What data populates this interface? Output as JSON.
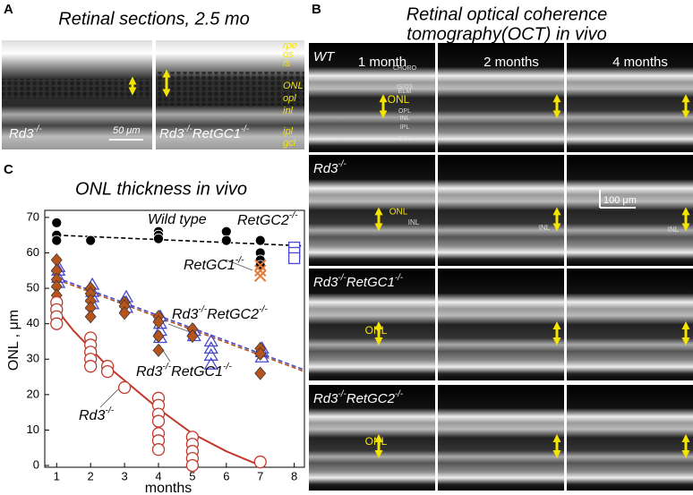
{
  "panels": {
    "A": {
      "letter": "A",
      "title": "Retinal sections, 2.5 mo",
      "left_label": [
        "Rd3",
        "-/-"
      ],
      "right_label": [
        "Rd3",
        "-/-",
        "RetGC1",
        "-/-"
      ],
      "scale": "50 μm",
      "layers": [
        "rpe",
        "os",
        "is",
        "ONL",
        "opl",
        "inl",
        "ipl",
        "gcl"
      ]
    },
    "B": {
      "letter": "B",
      "title": [
        "Retinal optical coherence",
        "tomography(OCT) in vivo"
      ],
      "columns": [
        "1 month",
        "2 months",
        "4 months"
      ],
      "rows": [
        [
          "WT"
        ],
        [
          "Rd3",
          "-/-"
        ],
        [
          "Rd3",
          "-/-",
          "RetGC1",
          "-/-"
        ],
        [
          "Rd3",
          "-/-",
          "RetGC2",
          "-/-"
        ]
      ],
      "scale": "100 μm",
      "wt_layers": [
        "CHORO",
        "IS/OS",
        "ELM",
        "OPL",
        "INL",
        "IPL",
        "GCL"
      ],
      "onl": "ONL",
      "inl": "INL"
    },
    "C": {
      "letter": "C"
    }
  },
  "chart_data": {
    "type": "scatter",
    "title": "ONL thickness in vivo",
    "x_label": "months",
    "y_label": "ONL , μm",
    "xlim": [
      0.65,
      8.3
    ],
    "ylim": [
      -0.5,
      72
    ],
    "xticks": [
      1,
      2,
      3,
      4,
      5,
      6,
      7,
      8
    ],
    "yticks": [
      0,
      10,
      20,
      30,
      40,
      50,
      60,
      70
    ],
    "series": [
      {
        "label": [
          "Wild type"
        ],
        "color": "#000000",
        "marker": "circle-filled",
        "x": [
          1,
          1,
          1,
          2,
          4,
          4,
          4,
          6,
          6,
          7,
          7,
          7,
          7
        ],
        "values": [
          68.5,
          65,
          63.5,
          63.5,
          66,
          65,
          64,
          66,
          63.5,
          63.5,
          60,
          58,
          56.5
        ]
      },
      {
        "label": [
          "RetGC1",
          "-/-"
        ],
        "color": "#e07b39",
        "marker": "x",
        "x": [
          7,
          7,
          7
        ],
        "values": [
          56.5,
          55,
          53.5
        ]
      },
      {
        "label": [
          "RetGC2",
          "-/-"
        ],
        "color": "#4a4ad0",
        "marker": "square-open",
        "x": [
          8,
          8,
          8
        ],
        "values": [
          61.5,
          60,
          58.5
        ]
      },
      {
        "label": [
          "Rd3",
          "-/-",
          "RetGC2",
          "-/-"
        ],
        "color": "#4a4ad0",
        "marker": "triangle-open",
        "x": [
          1.05,
          1.05,
          1.05,
          1.05,
          2.05,
          2.05,
          2.05,
          2.05,
          3.05,
          3.05,
          3.05,
          4.05,
          4.05,
          4.05,
          4.05,
          5.05,
          5.05,
          5.55,
          5.55,
          5.55,
          5.55,
          7.05,
          7.05,
          7.05
        ],
        "values": [
          56,
          55,
          53,
          51.5,
          51,
          49,
          47.5,
          45.5,
          47.5,
          46,
          44.5,
          42,
          40,
          38,
          36,
          38,
          36.5,
          35,
          33,
          31,
          28.5,
          33,
          32,
          30.5
        ]
      },
      {
        "label": [
          "Rd3",
          "-/-",
          "RetGC1",
          "-/-"
        ],
        "color": "#b5541c",
        "marker": "diamond",
        "x": [
          1,
          1,
          1,
          1,
          1,
          2,
          2,
          2,
          2,
          2,
          3,
          3,
          3,
          4,
          4,
          4,
          4,
          5,
          5,
          7,
          7,
          7
        ],
        "values": [
          58,
          55,
          52.5,
          50.5,
          48,
          50,
          48.5,
          46.5,
          44.5,
          42,
          46,
          45,
          43,
          42,
          40.5,
          36.5,
          32.5,
          38.5,
          36.5,
          33,
          31.5,
          26
        ]
      },
      {
        "label": [
          "Rd3",
          "-/-"
        ],
        "color": "#c0392b",
        "marker": "circle-open",
        "x": [
          1,
          1,
          1,
          1,
          2,
          2,
          2,
          2,
          2,
          2.5,
          2.5,
          3,
          4,
          4,
          4,
          4,
          4,
          4,
          4,
          5,
          5,
          5,
          5,
          5,
          7
        ],
        "values": [
          46,
          44,
          42,
          40,
          36,
          34,
          32,
          30,
          28,
          28,
          26.5,
          22,
          19,
          17,
          14.5,
          12.5,
          9,
          7,
          4.5,
          8,
          6,
          4,
          2,
          0,
          1
        ]
      }
    ],
    "fits": [
      {
        "color": "#000000",
        "dash": true,
        "x": [
          1,
          8.2
        ],
        "values": [
          65,
          62
        ]
      },
      {
        "color": "#4a4ad0",
        "dash": true,
        "x": [
          1,
          8.3
        ],
        "values": [
          53,
          27
        ]
      },
      {
        "color": "#b5541c",
        "dash": true,
        "x": [
          1,
          8.3
        ],
        "values": [
          52.5,
          26.5
        ]
      },
      {
        "color": "#c0392b",
        "dash": false,
        "x": [
          1,
          1.5,
          2,
          2.5,
          3,
          4,
          5,
          6,
          7
        ],
        "values": [
          44,
          38,
          33,
          28,
          24,
          16,
          9,
          4,
          0
        ]
      }
    ]
  }
}
